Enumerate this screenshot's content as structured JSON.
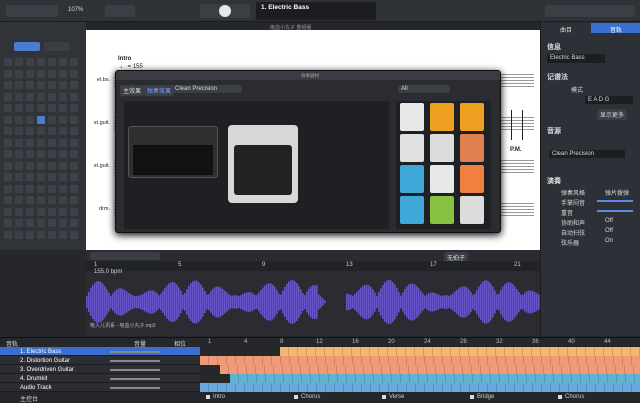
{
  "window_title": "吸血小丸子 重组版",
  "toolbar": {
    "zoom": "107%",
    "track": "1. Electric Bass"
  },
  "score": {
    "section": "Intro",
    "tempo": "♩ = 155",
    "staves": [
      "el.bs.",
      "st.guit.",
      "st.guit.",
      "drm."
    ],
    "pm": "P.M."
  },
  "effects": {
    "title": "效果器材",
    "tabs": [
      "主效果",
      "独奏效果"
    ],
    "preset": "Clean Precision",
    "filter": "All"
  },
  "right_panel": {
    "tabs": [
      "曲目",
      "音轨"
    ],
    "info": "信息",
    "track_name": "Electric Bass",
    "notation": "记谱法",
    "mode": "模式",
    "tuning": "E A D G",
    "show_more": "显示更多",
    "sound": "音源",
    "sound_preset": "Clean Precision",
    "play": "演奏",
    "rows": [
      {
        "label": "弹奏风格",
        "value": "弹片拨弹"
      },
      {
        "label": "手掌闷音"
      },
      {
        "label": "重音"
      },
      {
        "label": "协助和声",
        "value": "Off"
      },
      {
        "label": "自动扫弦",
        "value": "Off"
      },
      {
        "label": "弦乐器",
        "value": "On"
      }
    ]
  },
  "timeline": {
    "bpm": "155.0 bpm",
    "mode": "无拍子",
    "markers": [
      "1",
      "5",
      "9",
      "13",
      "17",
      "21"
    ],
    "file": "吸入儿讯系 - 吸血小丸子.mp3"
  },
  "tracks": {
    "header": "音轨",
    "volume": "音量",
    "pan": "相位",
    "list": [
      "1. Electric Bass",
      "2. Distortion Guitar",
      "3. Overdriven Guitar",
      "4. Drumkit",
      "Audio Track"
    ],
    "master": "主控台",
    "bars": [
      "1",
      "4",
      "8",
      "12",
      "16",
      "20",
      "24",
      "28",
      "32",
      "36",
      "40",
      "44"
    ],
    "sections": [
      "Intro",
      "Chorus",
      "Verse",
      "Bridge",
      "Chorus"
    ]
  }
}
